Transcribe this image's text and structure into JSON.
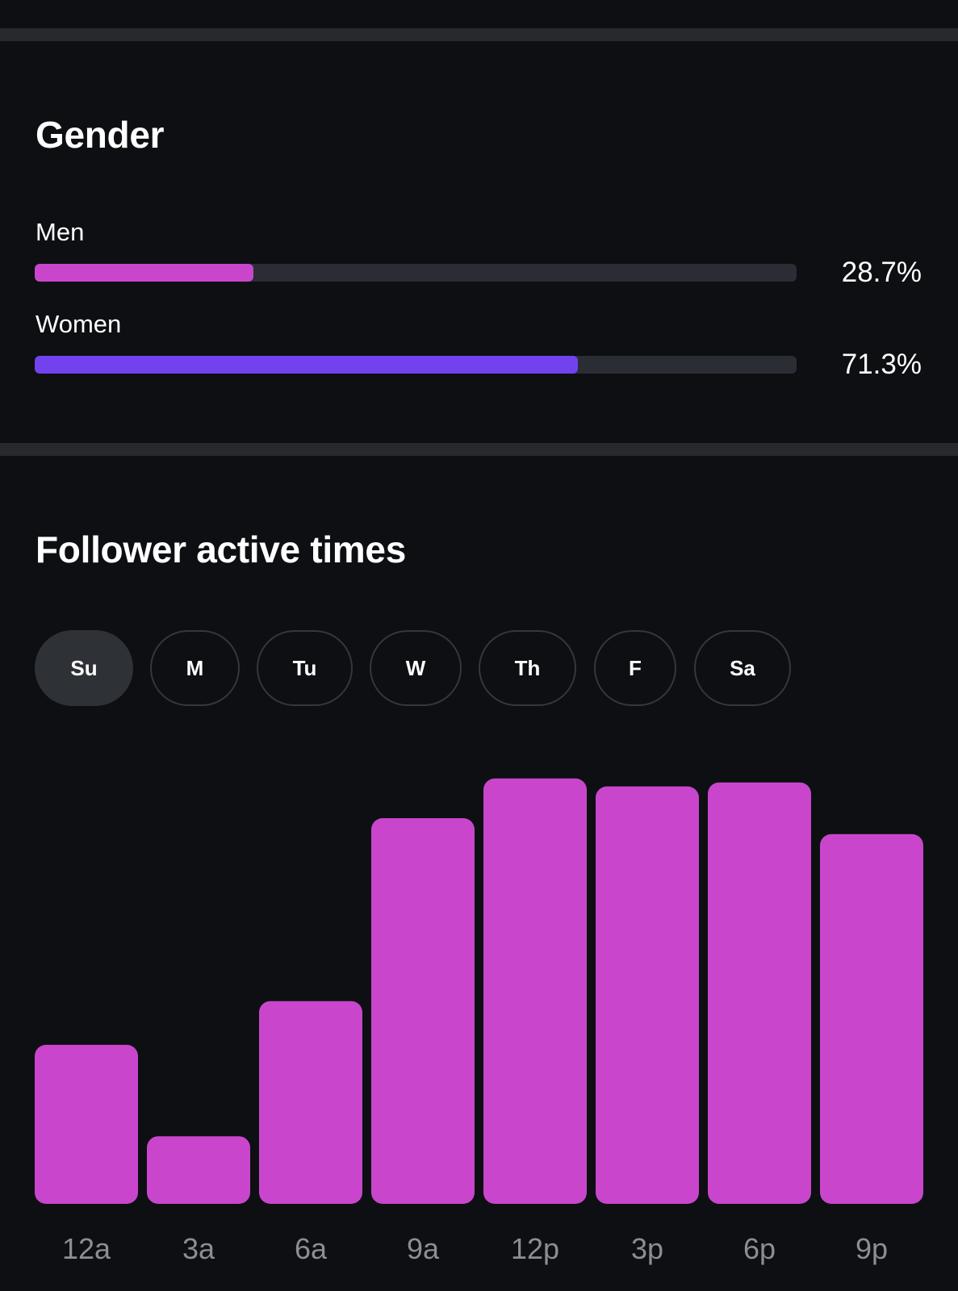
{
  "gender": {
    "title": "Gender",
    "rows": [
      {
        "label": "Men",
        "value": 28.7,
        "value_text": "28.7%",
        "color": "#c946cc"
      },
      {
        "label": "Women",
        "value": 71.3,
        "value_text": "71.3%",
        "color": "#7242ef"
      }
    ]
  },
  "active_times": {
    "title": "Follower active times",
    "days": [
      "Su",
      "M",
      "Tu",
      "W",
      "Th",
      "F",
      "Sa"
    ],
    "selected_day": "Su"
  },
  "chart_data": {
    "type": "bar",
    "categories": [
      "12a",
      "3a",
      "6a",
      "9a",
      "12p",
      "3p",
      "6p",
      "9p"
    ],
    "values": [
      40,
      17,
      51,
      97,
      107,
      105,
      106,
      93
    ],
    "ylim": [
      0,
      110
    ],
    "grid": false,
    "bar_color": "#c946cc",
    "tick_color": "#8b8e94"
  }
}
